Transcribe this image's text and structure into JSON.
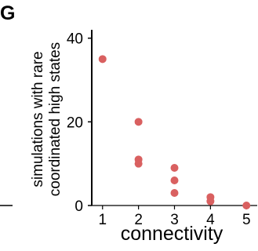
{
  "chart_data": {
    "type": "scatter",
    "panel_label": "G",
    "xlabel": "connectivity",
    "ylabel_lines": [
      "simulations with rare",
      "coordinated high states"
    ],
    "xlim": [
      0.7,
      5.3
    ],
    "ylim": [
      0,
      42
    ],
    "xticks": [
      1,
      2,
      3,
      4,
      5
    ],
    "yticks": [
      0,
      20,
      40
    ],
    "grid": false,
    "point_color": "#d96060",
    "points": [
      {
        "x": 1,
        "y": 35
      },
      {
        "x": 2,
        "y": 20
      },
      {
        "x": 2,
        "y": 11
      },
      {
        "x": 2,
        "y": 10
      },
      {
        "x": 3,
        "y": 9
      },
      {
        "x": 3,
        "y": 6
      },
      {
        "x": 3,
        "y": 3
      },
      {
        "x": 4,
        "y": 2
      },
      {
        "x": 4,
        "y": 1
      },
      {
        "x": 5,
        "y": 0
      }
    ]
  }
}
